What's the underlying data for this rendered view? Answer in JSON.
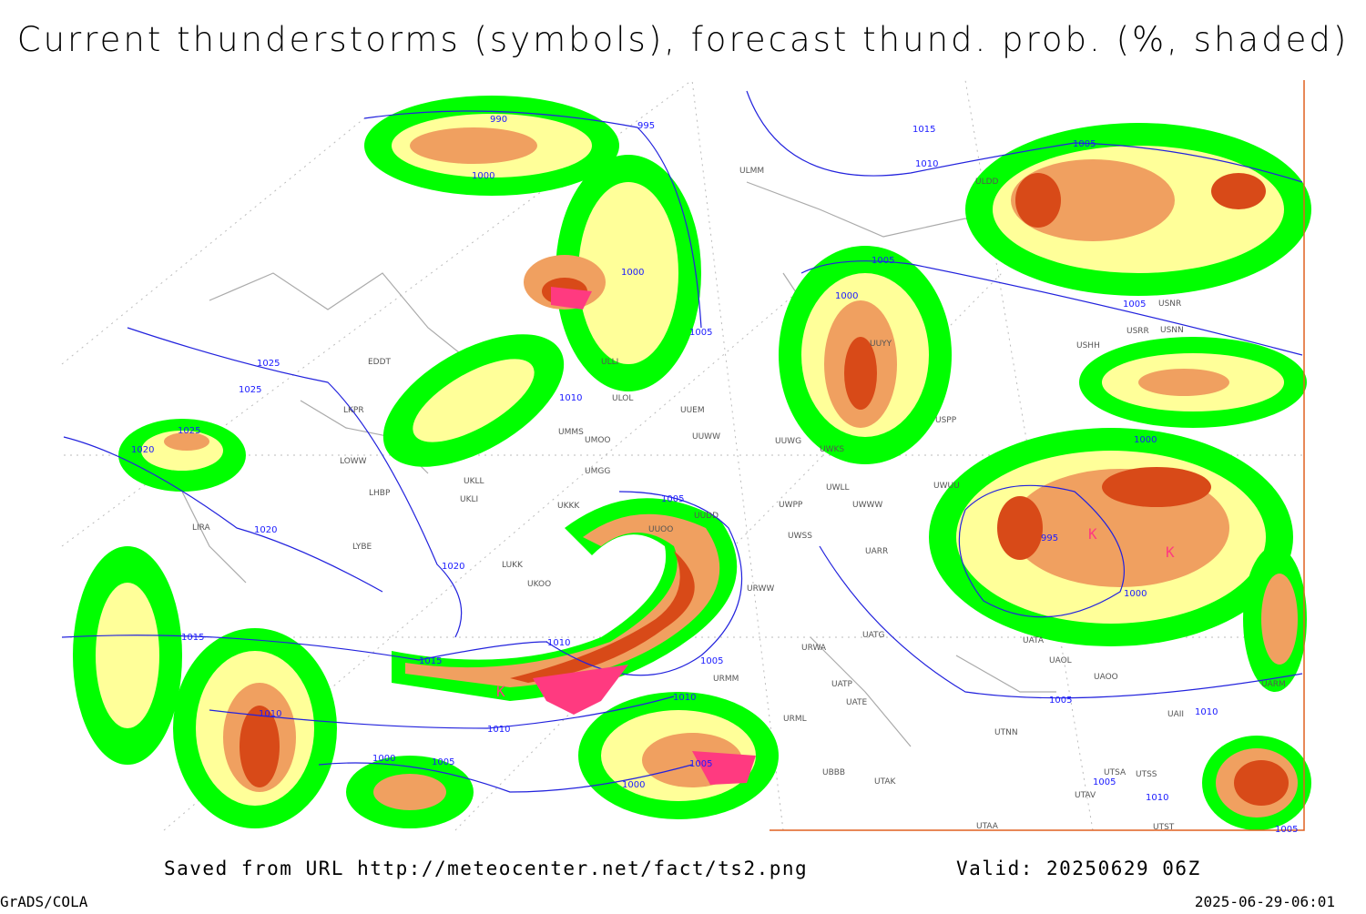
{
  "header": {
    "title": "Current thunderstorms (symbols), forecast thund. prob. (%, shaded)"
  },
  "footer": {
    "source": "Saved from URL http://meteocenter.net/fact/ts2.png",
    "valid": "Valid: 20250629 06Z",
    "software": "GrADS/COLA",
    "timestamp": "2025-06-29-06:01"
  },
  "map": {
    "isobar_labels": [
      990,
      995,
      1000,
      1000,
      1005,
      1015,
      1010,
      1005,
      1005,
      1000,
      1005,
      1025,
      1025,
      1025,
      1020,
      1020,
      1020,
      1010,
      1005,
      995,
      1000,
      1000,
      1015,
      1015,
      1010,
      1010,
      1010,
      1000,
      1005,
      1000,
      1005,
      1010,
      1005,
      1010,
      1010,
      1005,
      1005,
      1005
    ],
    "stations": [
      "EDDT",
      "LKPR",
      "LOWW",
      "LHBP",
      "LIRA",
      "LYBE",
      "LUKK",
      "UKOO",
      "UKLL",
      "UKLI",
      "UMMS",
      "UMOO",
      "UMGG",
      "UKKK",
      "ULOL",
      "ULLI",
      "UUEM",
      "UUWW",
      "UUOO",
      "UUDD",
      "UUWG",
      "UWKS",
      "UWLL",
      "UWWW",
      "UWPP",
      "UWSS",
      "UARR",
      "URWW",
      "URWA",
      "UATG",
      "UATP",
      "UATE",
      "URML",
      "URMM",
      "UBBB",
      "UTAK",
      "UTNN",
      "UATA",
      "UAOL",
      "UAOO",
      "USPP",
      "UWUU",
      "USNR",
      "USNN",
      "USRR",
      "USHH",
      "UUYY",
      "ULMM",
      "ULDD",
      "UTSA",
      "UTSS",
      "UTAV",
      "UTAA",
      "UTST",
      "UAII",
      "UARM"
    ]
  }
}
